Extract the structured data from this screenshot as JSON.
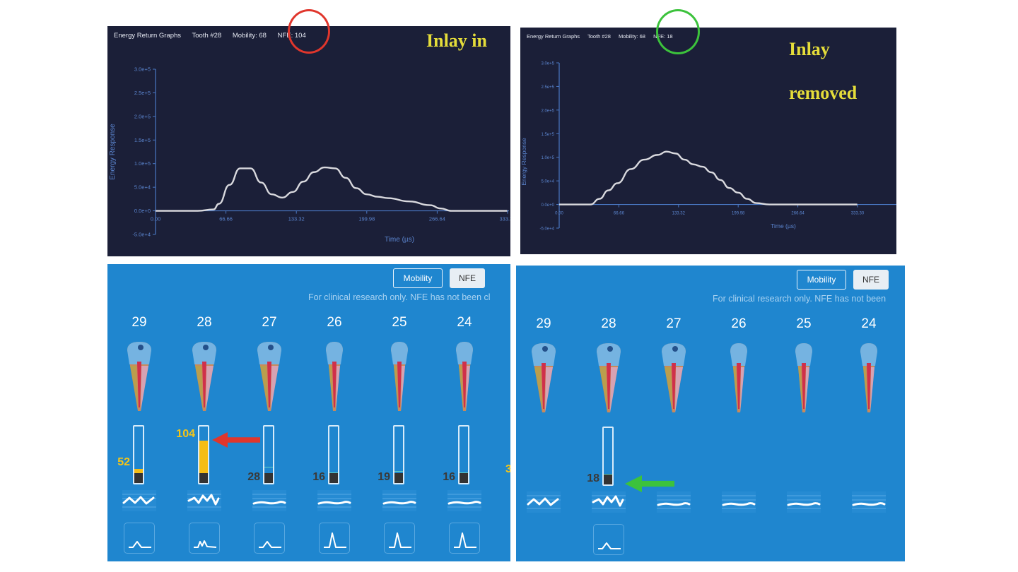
{
  "left": {
    "header": {
      "title": "Energy Return Graphs",
      "tooth": "Tooth #28",
      "mobility": "Mobility: 68",
      "nfe": "NFE: 104"
    },
    "overlay": "Inlay in",
    "circle_color": "#e0362c",
    "chart_data": {
      "type": "line",
      "xlabel": "Time (µs)",
      "ylabel": "Energy Response",
      "x_ticks": [
        "0.00",
        "66.66",
        "133.32",
        "199.98",
        "266.64",
        "333.30"
      ],
      "y_ticks": [
        "-5.0e+4",
        "0.0e+0",
        "5.0e+4",
        "1.0e+5",
        "1.5e+5",
        "2.0e+5",
        "2.5e+5",
        "3.0e+5"
      ],
      "xlim": [
        0,
        333.3
      ],
      "ylim": [
        -50000,
        300000
      ],
      "series": [
        {
          "x": [
            0,
            20,
            40,
            55,
            60,
            70,
            80,
            90,
            100,
            110,
            120,
            130,
            140,
            150,
            160,
            170,
            180,
            190,
            200,
            210,
            220,
            240,
            260,
            270,
            280,
            300,
            333
          ],
          "y": [
            0,
            0,
            0,
            3000,
            15000,
            55000,
            90000,
            90000,
            60000,
            35000,
            28000,
            40000,
            62000,
            82000,
            92000,
            90000,
            70000,
            48000,
            35000,
            30000,
            27000,
            20000,
            12000,
            5000,
            0,
            0,
            0
          ]
        }
      ]
    },
    "controls": {
      "mobility": "Mobility",
      "nfe": "NFE"
    },
    "disclaimer": "For clinical research only. NFE has not been cl",
    "teeth": [
      {
        "number": "29",
        "value": "52",
        "value_color": "#f5c518",
        "level": 0.25,
        "wave": "zigzag",
        "pulse": "bump"
      },
      {
        "number": "28",
        "value": "104",
        "value_color": "#f5c518",
        "level": 0.75,
        "wave": "zigzag2",
        "pulse": "double"
      },
      {
        "number": "27",
        "value": "28",
        "value_color": "#3a3a3a",
        "level": 0.2,
        "wave": "flat",
        "pulse": "bump"
      },
      {
        "number": "26",
        "value": "16",
        "value_color": "#3a3a3a",
        "level": 0.1,
        "wave": "flat",
        "pulse": "spike"
      },
      {
        "number": "25",
        "value": "19",
        "value_color": "#3a3a3a",
        "level": 0.12,
        "wave": "flat",
        "pulse": "spike"
      },
      {
        "number": "24",
        "value": "16",
        "value_color": "#3a3a3a",
        "level": 0.1,
        "wave": "flat",
        "pulse": "spike"
      }
    ],
    "edge_value": "3",
    "arrow_color": "#e0362c"
  },
  "right": {
    "header": {
      "title": "Energy Return Graphs",
      "tooth": "Tooth #28",
      "mobility": "Mobility: 68",
      "nfe": "NFE: 18"
    },
    "overlay_line1": "Inlay",
    "overlay_line2": "removed",
    "circle_color": "#3cc23c",
    "chart_data": {
      "type": "line",
      "xlabel": "Time (µs)",
      "ylabel": "Energy Response",
      "x_ticks": [
        "0.00",
        "66.66",
        "133.32",
        "199.98",
        "266.64",
        "333.30"
      ],
      "y_ticks": [
        "-5.0e+4",
        "0.0e+0",
        "5.0e+4",
        "1.0e+5",
        "1.5e+5",
        "2.0e+5",
        "2.5e+5",
        "3.0e+5"
      ],
      "xlim": [
        0,
        333.3
      ],
      "ylim": [
        -50000,
        300000
      ],
      "series": [
        {
          "x": [
            0,
            20,
            35,
            45,
            55,
            65,
            80,
            95,
            110,
            120,
            130,
            140,
            150,
            160,
            170,
            180,
            190,
            200,
            210,
            220,
            235,
            250,
            333
          ],
          "y": [
            0,
            0,
            0,
            12000,
            30000,
            45000,
            75000,
            95000,
            105000,
            112000,
            108000,
            95000,
            85000,
            80000,
            68000,
            52000,
            35000,
            25000,
            12000,
            3000,
            0,
            0,
            0
          ]
        }
      ]
    },
    "controls": {
      "mobility": "Mobility",
      "nfe": "NFE"
    },
    "disclaimer": "For clinical research only. NFE has not been",
    "teeth": [
      {
        "number": "29",
        "wave": "zigzag"
      },
      {
        "number": "28",
        "value": "18",
        "value_color": "#3a3a3a",
        "level": 0.1,
        "wave": "zigzag2",
        "pulse": "bump"
      },
      {
        "number": "27",
        "wave": "flat"
      },
      {
        "number": "26",
        "wave": "flat"
      },
      {
        "number": "25",
        "wave": "flat"
      },
      {
        "number": "24",
        "wave": "flat"
      }
    ],
    "arrow_color": "#3cc23c"
  }
}
